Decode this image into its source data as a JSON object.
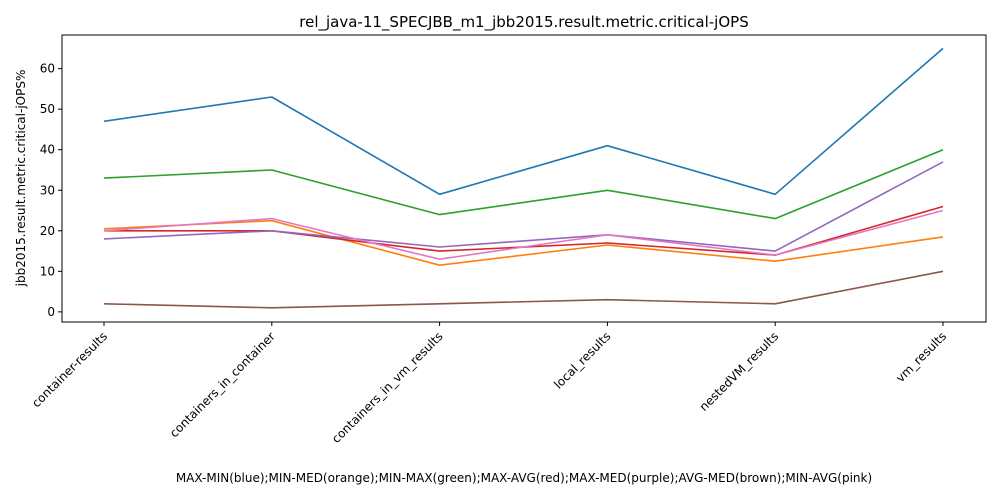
{
  "chart_data": {
    "type": "line",
    "title": "rel_java-11_SPECJBB_m1_jbb2015.result.metric.critical-jOPS",
    "xlabel": "MAX-MIN(blue);MIN-MED(orange);MIN-MAX(green);MAX-AVG(red);MAX-MED(purple);AVG-MED(brown);MIN-AVG(pink)",
    "ylabel": "jbb2015.result.metric.critical-jOPS%",
    "categories": [
      "container-results",
      "containers_in_container",
      "containers_in_vm_results",
      "local_results",
      "nestedVM_results",
      "vm_results"
    ],
    "ylim": [
      -2.5,
      68.3
    ],
    "yticks": [
      0,
      10,
      20,
      30,
      40,
      50,
      60
    ],
    "grid": false,
    "series": [
      {
        "color": "#1f77b4",
        "values": [
          47,
          53,
          29,
          41,
          29,
          65
        ]
      },
      {
        "color": "#ff7f0e",
        "values": [
          20.5,
          22.5,
          11.5,
          16.5,
          12.5,
          18.5
        ]
      },
      {
        "color": "#2ca02c",
        "values": [
          33,
          35,
          24,
          30,
          23,
          40
        ]
      },
      {
        "color": "#d62728",
        "values": [
          20,
          20,
          15,
          17,
          14,
          26
        ]
      },
      {
        "color": "#9467bd",
        "values": [
          18,
          20,
          16,
          19,
          15,
          37
        ]
      },
      {
        "color": "#8c564b",
        "values": [
          2,
          1,
          2,
          3,
          2,
          10
        ]
      },
      {
        "color": "#e377c2",
        "values": [
          20,
          23,
          13,
          19,
          14,
          25
        ]
      }
    ]
  }
}
